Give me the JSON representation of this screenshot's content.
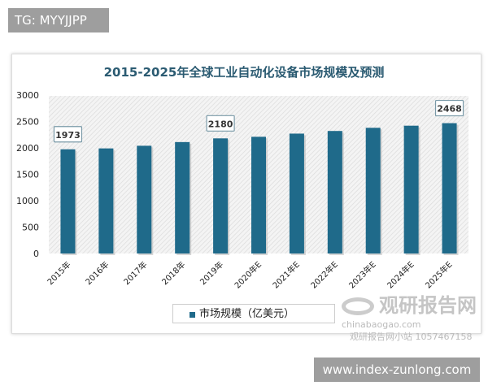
{
  "tg_label": "TG: MYYJJPP",
  "url_label": "www.index-zunlong.com",
  "watermark": {
    "brand": "观研报告网",
    "site": "chinabaogao.com",
    "sub": "观研报告网小站 1057467158"
  },
  "colors": {
    "bar": "#1f6a8a",
    "title": "#2b5b72"
  },
  "chart_data": {
    "type": "bar",
    "title": "2015-2025年全球工业自动化设备市场规模及预测",
    "categories": [
      "2015年",
      "2016年",
      "2017年",
      "2018年",
      "2019年",
      "2020年E",
      "2021年E",
      "2022年E",
      "2023年E",
      "2024年E",
      "2025年E"
    ],
    "series": [
      {
        "name": "市场规模（亿美元）",
        "values": [
          1973,
          1990,
          2040,
          2110,
          2180,
          2210,
          2270,
          2320,
          2380,
          2420,
          2468
        ]
      }
    ],
    "data_labels": {
      "0": "1973",
      "4": "2180",
      "10": "2468"
    },
    "yticks": [
      "0",
      "500",
      "1000",
      "1500",
      "2000",
      "2500",
      "3000"
    ],
    "ylim": [
      0,
      3000
    ],
    "legend": "bottom-left",
    "grid": false
  }
}
